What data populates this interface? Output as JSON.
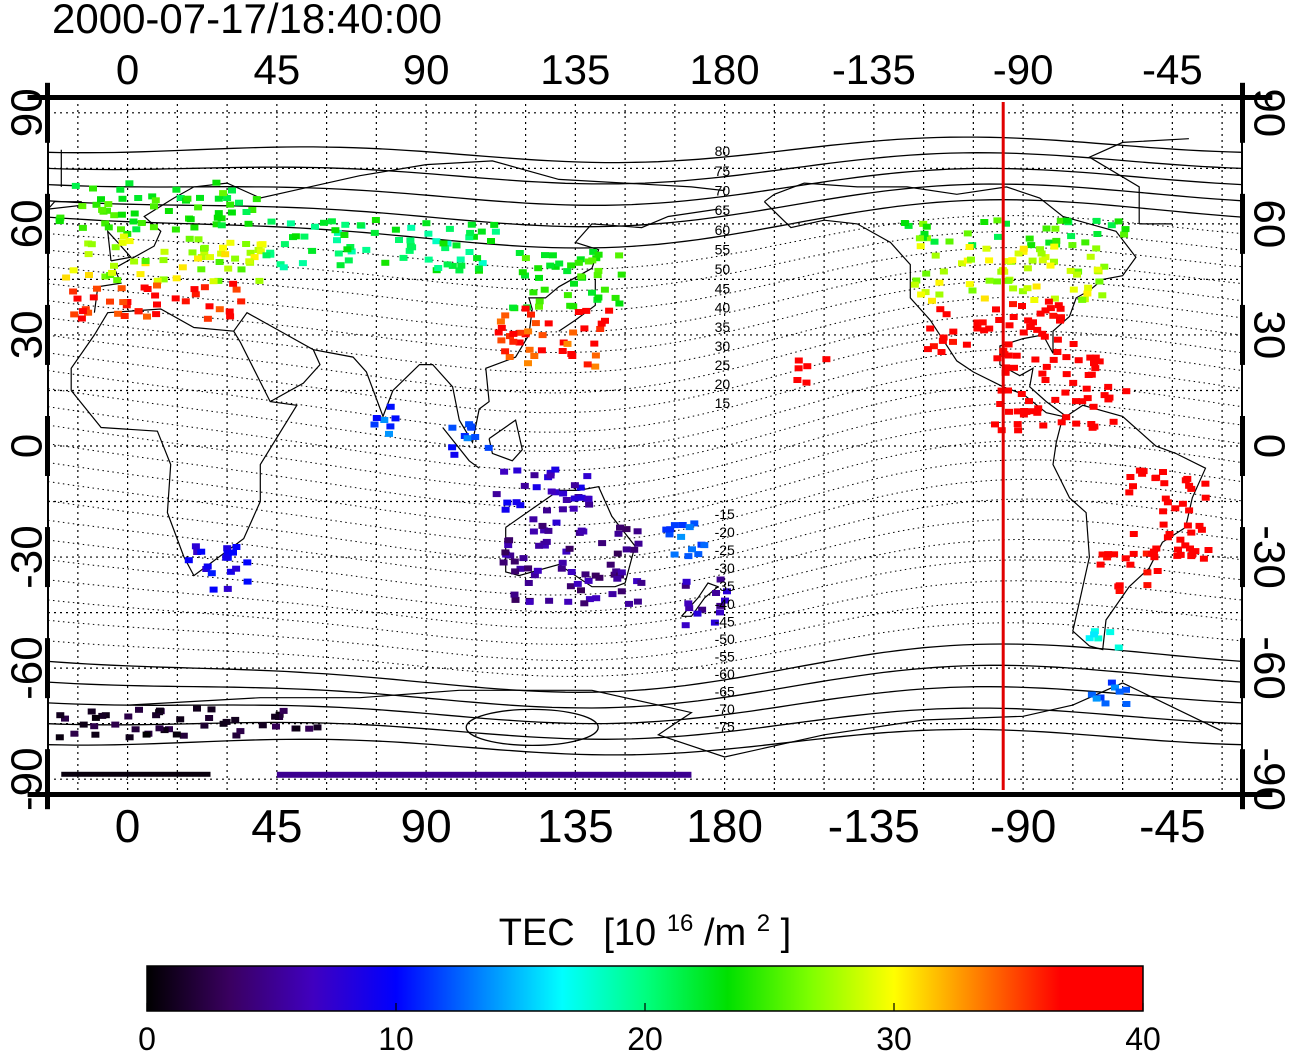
{
  "timestamp": "2000-07-17/18:40:00",
  "map": {
    "x_ticks": [
      "0",
      "45",
      "90",
      "135",
      "180",
      "-135",
      "-90",
      "-45"
    ],
    "x_tick_lons": [
      0,
      45,
      90,
      135,
      180,
      225,
      270,
      315
    ],
    "y_ticks": [
      "90",
      "60",
      "30",
      "0",
      "-30",
      "-60",
      "-90"
    ],
    "y_tick_lats": [
      90,
      60,
      30,
      0,
      -30,
      -60,
      -90
    ],
    "lon_range": [
      -24,
      336
    ],
    "lat_range": [
      -94,
      94
    ],
    "grid": "dotted, every 15 degrees",
    "marker_line_lon": -96,
    "marker_line_color": "#e00000",
    "contour_labels": [
      {
        "text": "80",
        "lat": 80
      },
      {
        "text": "75",
        "lat": 75
      },
      {
        "text": "70",
        "lat": 70
      },
      {
        "text": "65",
        "lat": 65
      },
      {
        "text": "60",
        "lat": 60
      },
      {
        "text": "55",
        "lat": 55
      },
      {
        "text": "50",
        "lat": 50
      },
      {
        "text": "45",
        "lat": 45
      },
      {
        "text": "40",
        "lat": 40
      },
      {
        "text": "35",
        "lat": 35
      },
      {
        "text": "30",
        "lat": 30
      },
      {
        "text": "25",
        "lat": 25
      },
      {
        "text": "20",
        "lat": 20
      },
      {
        "text": "15",
        "lat": 15
      },
      {
        "text": "-15",
        "lat": -15
      },
      {
        "text": "-20",
        "lat": -20
      },
      {
        "text": "-25",
        "lat": -25
      },
      {
        "text": "-30",
        "lat": -30
      },
      {
        "text": "-35",
        "lat": -35
      },
      {
        "text": "-40",
        "lat": -40
      },
      {
        "text": "-45",
        "lat": -45
      },
      {
        "text": "-50",
        "lat": -50
      },
      {
        "text": "-55",
        "lat": -55
      },
      {
        "text": "-60",
        "lat": -60
      },
      {
        "text": "-65",
        "lat": -65
      },
      {
        "text": "-70",
        "lat": -70
      },
      {
        "text": "-75",
        "lat": -75
      }
    ]
  },
  "colorbar": {
    "title": "TEC",
    "unit_base": "[10",
    "unit_exp": "16",
    "unit_mid": "/m",
    "unit_exp2": "2",
    "unit_end": "]",
    "min": 0,
    "max": 40,
    "tick_labels": [
      "0",
      "10",
      "20",
      "30",
      "40"
    ],
    "colors": [
      "#000000",
      "#3a0060",
      "#4000c0",
      "#0000ff",
      "#0080ff",
      "#00ffff",
      "#00ff80",
      "#00e000",
      "#80ff00",
      "#ffff00",
      "#ff8000",
      "#ff0000",
      "#ff0000"
    ]
  },
  "tec_regions": [
    {
      "name": "europe",
      "lon": [
        -22,
        38
      ],
      "lat": [
        58,
        72
      ],
      "tec": [
        21,
        26
      ]
    },
    {
      "name": "europe-mid",
      "lon": [
        -20,
        40
      ],
      "lat": [
        45,
        58
      ],
      "tec": [
        25,
        31
      ]
    },
    {
      "name": "europe-south",
      "lon": [
        -18,
        35
      ],
      "lat": [
        35,
        45
      ],
      "tec": [
        34,
        39
      ]
    },
    {
      "name": "russia",
      "lon": [
        40,
        110
      ],
      "lat": [
        48,
        62
      ],
      "tec": [
        18,
        24
      ]
    },
    {
      "name": "east-asia",
      "lon": [
        115,
        150
      ],
      "lat": [
        38,
        55
      ],
      "tec": [
        22,
        26
      ]
    },
    {
      "name": "japan-china",
      "lon": [
        110,
        145
      ],
      "lat": [
        22,
        38
      ],
      "tec": [
        33,
        39
      ]
    },
    {
      "name": "india",
      "lon": [
        70,
        80
      ],
      "lat": [
        2,
        12
      ],
      "tec": [
        10,
        14
      ]
    },
    {
      "name": "se-asia",
      "lon": [
        96,
        108
      ],
      "lat": [
        -2,
        10
      ],
      "tec": [
        8,
        14
      ]
    },
    {
      "name": "indonesia",
      "lon": [
        110,
        140
      ],
      "lat": [
        -20,
        -5
      ],
      "tec": [
        5,
        10
      ]
    },
    {
      "name": "australia",
      "lon": [
        112,
        155
      ],
      "lat": [
        -42,
        -20
      ],
      "tec": [
        3,
        7
      ]
    },
    {
      "name": "nz",
      "lon": [
        165,
        180
      ],
      "lat": [
        -48,
        -35
      ],
      "tec": [
        4,
        8
      ]
    },
    {
      "name": "pacific-south",
      "lon": [
        160,
        180
      ],
      "lat": [
        -30,
        -20
      ],
      "tec": [
        11,
        14
      ]
    },
    {
      "name": "africa-south",
      "lon": [
        15,
        35
      ],
      "lat": [
        -38,
        -25
      ],
      "tec": [
        7,
        11
      ]
    },
    {
      "name": "antarctic",
      "lon": [
        -22,
        60
      ],
      "lat": [
        -78,
        -70
      ],
      "tec": [
        0,
        3
      ]
    },
    {
      "name": "canada",
      "lon": [
        -130,
        -60
      ],
      "lat": [
        55,
        62
      ],
      "tec": [
        21,
        27
      ]
    },
    {
      "name": "usa-north",
      "lon": [
        -125,
        -65
      ],
      "lat": [
        40,
        55
      ],
      "tec": [
        26,
        31
      ]
    },
    {
      "name": "usa-south",
      "lon": [
        -120,
        -75
      ],
      "lat": [
        25,
        40
      ],
      "tec": [
        36,
        40
      ]
    },
    {
      "name": "caribbean",
      "lon": [
        -100,
        -60
      ],
      "lat": [
        5,
        25
      ],
      "tec": [
        38,
        40
      ]
    },
    {
      "name": "hawaii",
      "lon": [
        -160,
        -150
      ],
      "lat": [
        17,
        25
      ],
      "tec": [
        38,
        40
      ]
    },
    {
      "name": "brazil",
      "lon": [
        -60,
        -35
      ],
      "lat": [
        -30,
        -5
      ],
      "tec": [
        37,
        40
      ]
    },
    {
      "name": "argentina",
      "lon": [
        -68,
        -50
      ],
      "lat": [
        -40,
        -28
      ],
      "tec": [
        36,
        40
      ]
    },
    {
      "name": "patagonia",
      "lon": [
        -72,
        -62
      ],
      "lat": [
        -55,
        -48
      ],
      "tec": [
        15,
        18
      ]
    },
    {
      "name": "south-tip",
      "lon": [
        -72,
        -60
      ],
      "lat": [
        -70,
        -60
      ],
      "tec": [
        11,
        14
      ]
    }
  ]
}
